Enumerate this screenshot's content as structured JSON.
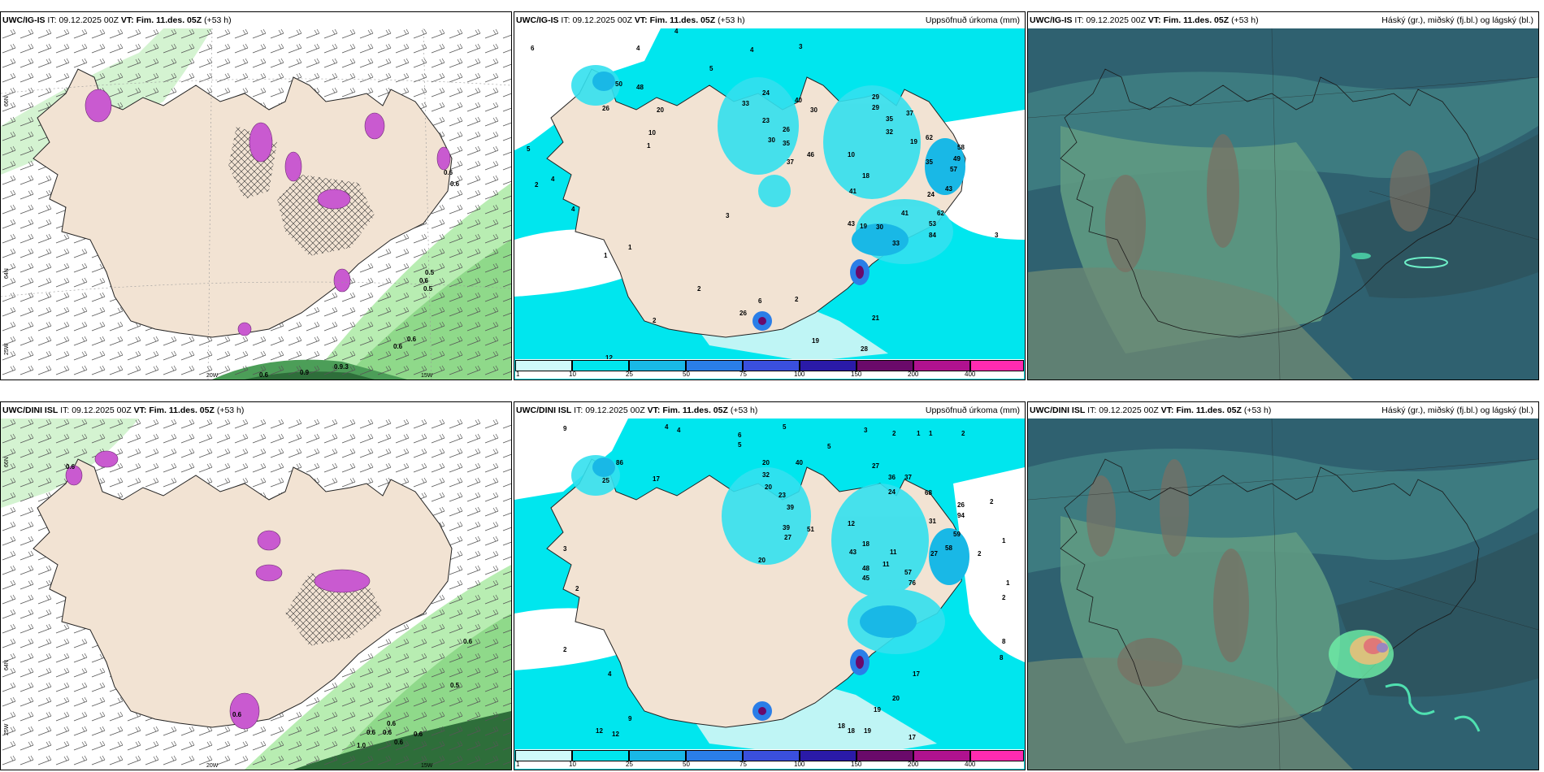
{
  "panels": [
    {
      "id": "p1",
      "title_model": "UWC/IG-IS",
      "title_it_label": "IT:",
      "title_it": "09.12.2025 00Z",
      "title_vt_label": "VT:",
      "title_vt": "Fim. 11.des. 05Z",
      "title_lead": "(+53 h)",
      "right_label": "",
      "values": [
        "0.6",
        "0.6",
        "0.5",
        "0.6",
        "0.5",
        "0.6",
        "0.6",
        "0.9",
        "0.9.3",
        "0.6"
      ],
      "axis_labels": [
        "20W",
        "15W"
      ],
      "lat_labels": [
        "66N",
        "64N",
        "25W"
      ]
    },
    {
      "id": "p2",
      "title_model": "UWC/IG-IS",
      "title_it_label": "IT:",
      "title_it": "09.12.2025 00Z",
      "title_vt_label": "VT:",
      "title_vt": "Fim. 11.des. 05Z",
      "title_lead": "(+53 h)",
      "right_label": "Uppsöfnuð úrkoma (mm)",
      "values": [
        "6",
        "4",
        "4",
        "5",
        "3",
        "4",
        "5",
        "4",
        "2",
        "1",
        "1",
        "1",
        "2",
        "2",
        "12",
        "26",
        "50",
        "48",
        "20",
        "10",
        "24",
        "40",
        "30",
        "33",
        "23",
        "26",
        "30",
        "35",
        "37",
        "46",
        "29",
        "29",
        "35",
        "32",
        "37",
        "62",
        "19",
        "35",
        "58",
        "49",
        "57",
        "43",
        "24",
        "10",
        "18",
        "41",
        "19",
        "41",
        "30",
        "43",
        "62",
        "53",
        "84",
        "33",
        "21",
        "19",
        "28",
        "26",
        "4",
        "6",
        "2",
        "3",
        "3"
      ],
      "colorbar": [
        "1",
        "10",
        "25",
        "50",
        "75",
        "100",
        "150",
        "200",
        "400"
      ],
      "colorbar_colors": [
        "#cffafa",
        "#00e6ee",
        "#19b8e6",
        "#2a7ee8",
        "#3a4fdd",
        "#2a1aa8",
        "#6a0a6a",
        "#b0128f",
        "#ff2bb0"
      ]
    },
    {
      "id": "p3",
      "title_model": "UWC/IG-IS",
      "title_it_label": "IT:",
      "title_it": "09.12.2025 00Z",
      "title_vt_label": "VT:",
      "title_vt": "Fim. 11.des. 05Z",
      "title_lead": "(+53 h)",
      "right_label": "Háský (gr.), miðský (fj.bl.) og lágský (bl.)"
    },
    {
      "id": "p4",
      "title_model": "UWC/DINI ISL",
      "title_it_label": "IT:",
      "title_it": "09.12.2025 00Z",
      "title_vt_label": "VT:",
      "title_vt": "Fim. 11.des. 05Z",
      "title_lead": "(+53 h)",
      "right_label": "",
      "values": [
        "0.6",
        "0.5",
        "0.6",
        "0.6",
        "0.6",
        "0.6",
        "1.0",
        "0.6",
        "0.6",
        "0.6"
      ],
      "axis_labels": [
        "20W",
        "15W"
      ],
      "lat_labels": [
        "66N",
        "64N",
        "25W"
      ]
    },
    {
      "id": "p5",
      "title_model": "UWC/DINI ISL",
      "title_it_label": "IT:",
      "title_it": "09.12.2025 00Z",
      "title_vt_label": "VT:",
      "title_vt": "Fim. 11.des. 05Z",
      "title_lead": "(+53 h)",
      "right_label": "Uppsöfnuð úrkoma (mm)",
      "values": [
        "9",
        "4",
        "4",
        "6",
        "5",
        "5",
        "5",
        "3",
        "2",
        "1",
        "1",
        "2",
        "86",
        "25",
        "17",
        "20",
        "40",
        "32",
        "27",
        "36",
        "37",
        "24",
        "68",
        "94",
        "59",
        "31",
        "26",
        "20",
        "23",
        "39",
        "20",
        "51",
        "12",
        "39",
        "27",
        "18",
        "43",
        "48",
        "45",
        "57",
        "76",
        "11",
        "11",
        "27",
        "58",
        "2",
        "4",
        "2",
        "3",
        "2",
        "17",
        "20",
        "19",
        "18",
        "18",
        "19",
        "17",
        "12",
        "12",
        "9",
        "8",
        "8",
        "2",
        "1",
        "1",
        "2"
      ],
      "colorbar": [
        "1",
        "10",
        "25",
        "50",
        "75",
        "100",
        "150",
        "200",
        "400"
      ],
      "colorbar_colors": [
        "#cffafa",
        "#00e6ee",
        "#19b8e6",
        "#2a7ee8",
        "#3a4fdd",
        "#2a1aa8",
        "#6a0a6a",
        "#b0128f",
        "#ff2bb0"
      ]
    },
    {
      "id": "p6",
      "title_model": "UWC/DINI ISL",
      "title_it_label": "IT:",
      "title_it": "09.12.2025 00Z",
      "title_vt_label": "VT:",
      "title_vt": "Fim. 11.des. 05Z",
      "title_lead": "(+53 h)",
      "right_label": "Háský (gr.), miðský (fj.bl.) og lágský (bl.)"
    }
  ],
  "colors": {
    "land": "#f2e3d3",
    "precip_light": "#bff5f5",
    "precip_cyan": "#33e0ee",
    "cloud_dark": "#2f5f6a",
    "cloud_mid": "#4f8f80",
    "snow_magenta": "#c95ad0",
    "wind_green": "#9fe39a"
  }
}
